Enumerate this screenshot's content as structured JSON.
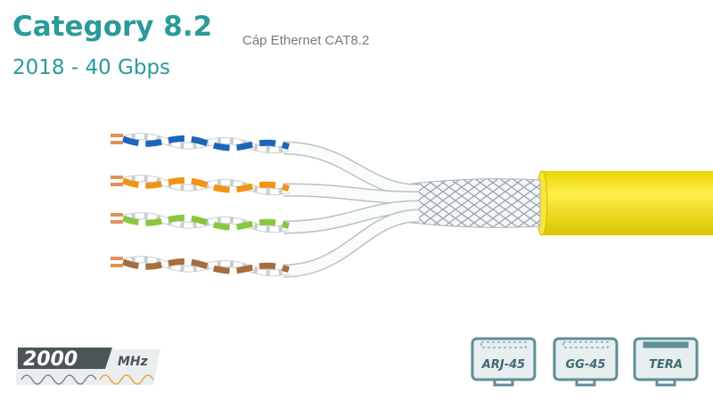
{
  "header": {
    "title": "Category 8.2",
    "subtitle": "Cáp Ethernet CAT8.2",
    "tagline": "2018 - 40 Gbps"
  },
  "badge": {
    "value": "2000",
    "unit": "MHz"
  },
  "connectors": [
    "ARJ-45",
    "GG-45",
    "TERA"
  ]
}
